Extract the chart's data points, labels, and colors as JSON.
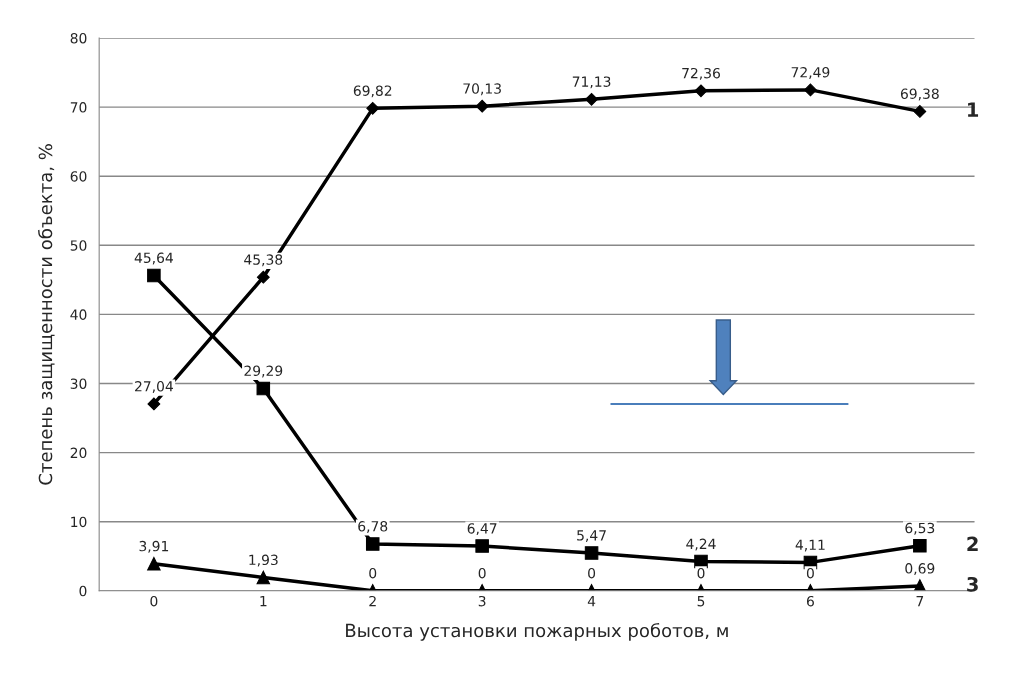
{
  "chart_data": {
    "type": "line",
    "xlabel": "Высота установки пожарных роботов, м",
    "ylabel": "Степень защищенности объекта, %",
    "categories": [
      "0",
      "1",
      "2",
      "3",
      "4",
      "5",
      "6",
      "7"
    ],
    "ylim": [
      0,
      80
    ],
    "yticks": [
      0,
      10,
      20,
      30,
      40,
      50,
      60,
      70,
      80
    ],
    "grid": "y",
    "legend": false,
    "line_style": "solid",
    "series": [
      {
        "name": "1",
        "color": "#000000",
        "marker": "diamond",
        "values": [
          27.04,
          45.38,
          69.82,
          70.13,
          71.13,
          72.36,
          72.49,
          69.38
        ],
        "value_labels": [
          "27,04",
          "45,38",
          "69,82",
          "70,13",
          "71,13",
          "72,36",
          "72,49",
          "69,38"
        ]
      },
      {
        "name": "2",
        "color": "#000000",
        "marker": "square",
        "values": [
          45.64,
          29.29,
          6.78,
          6.47,
          5.47,
          4.24,
          4.11,
          6.53
        ],
        "value_labels": [
          "45,64",
          "29,29",
          "6,78",
          "6,47",
          "5,47",
          "4,24",
          "4,11",
          "6,53"
        ]
      },
      {
        "name": "3",
        "color": "#000000",
        "marker": "triangle",
        "values": [
          3.91,
          1.93,
          0,
          0,
          0,
          0,
          0,
          0.69
        ],
        "value_labels": [
          "3,91",
          "1,93",
          "0",
          "0",
          "0",
          "0",
          "0",
          "0,69"
        ]
      }
    ]
  }
}
